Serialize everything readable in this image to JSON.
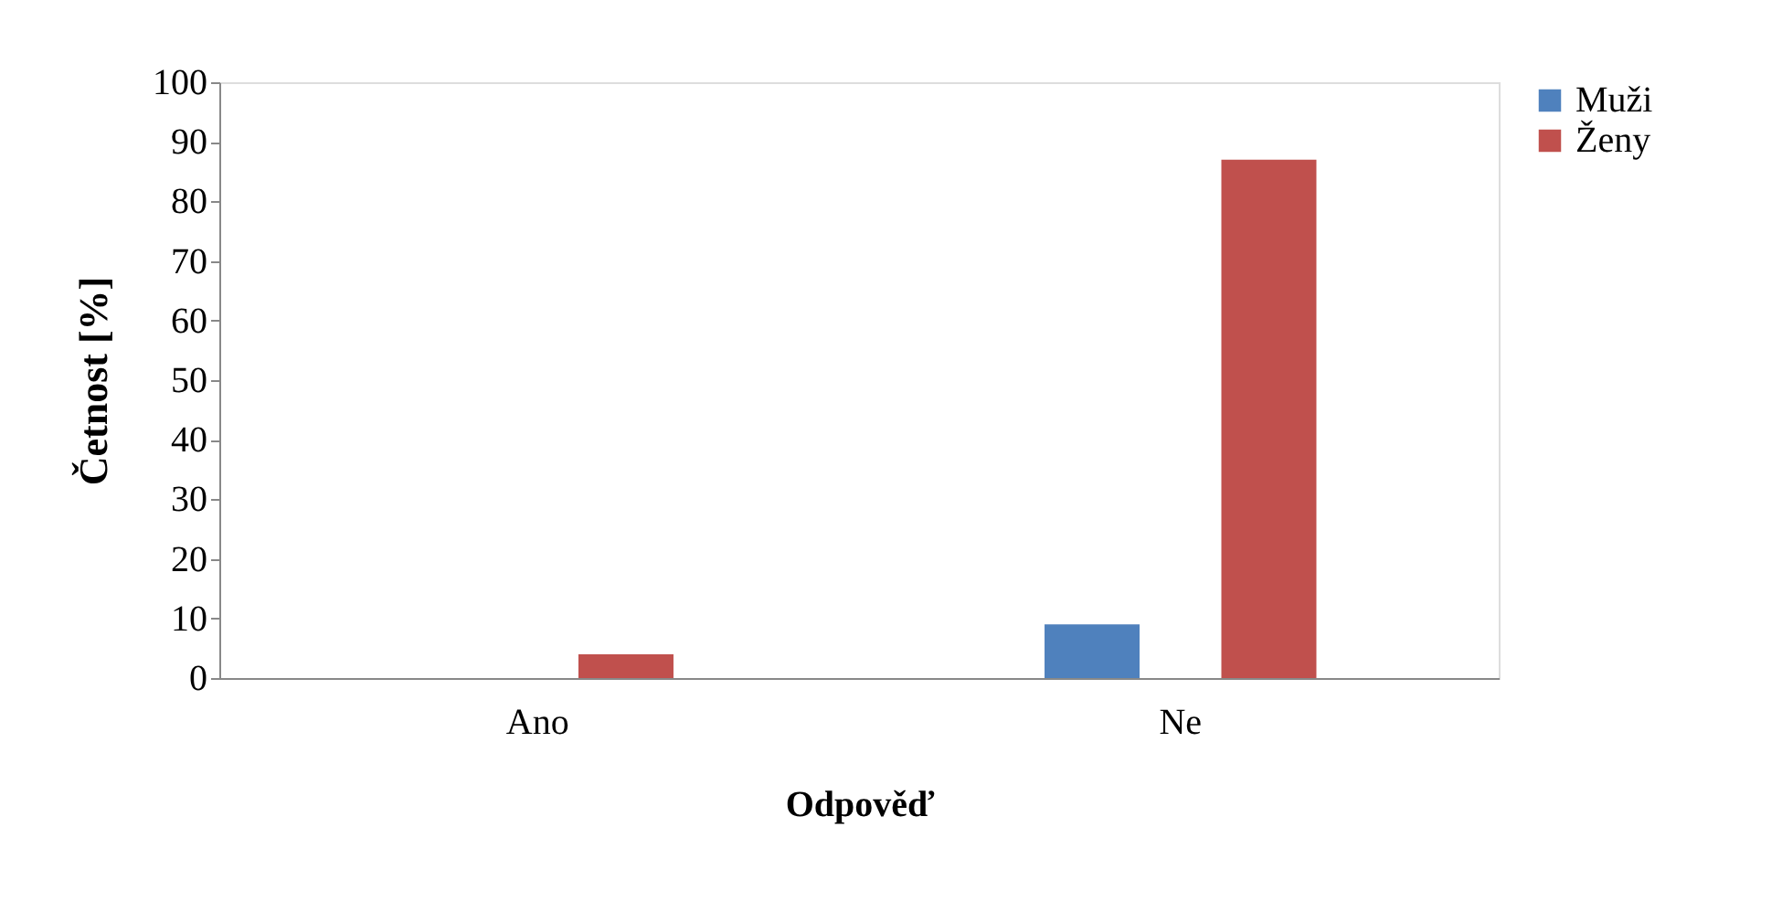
{
  "chart_data": {
    "type": "bar",
    "xlabel": "Odpověď",
    "ylabel": "Četnost [%]",
    "categories": [
      "Ano",
      "Ne"
    ],
    "series": [
      {
        "name": "Muži",
        "color": "#4f81bd",
        "values": [
          0,
          9
        ]
      },
      {
        "name": "Ženy",
        "color": "#c0504d",
        "values": [
          4,
          87
        ]
      }
    ],
    "ylim": [
      0,
      100
    ],
    "yticks": [
      0,
      10,
      20,
      30,
      40,
      50,
      60,
      70,
      80,
      90,
      100
    ],
    "grid": false,
    "legend": "right"
  }
}
